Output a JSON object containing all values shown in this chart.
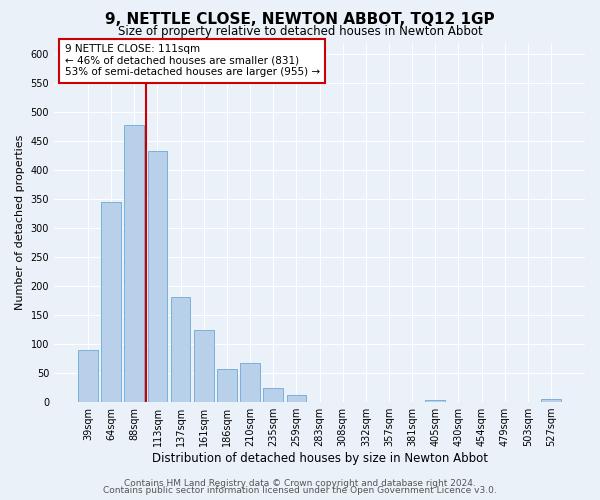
{
  "title": "9, NETTLE CLOSE, NEWTON ABBOT, TQ12 1GP",
  "subtitle": "Size of property relative to detached houses in Newton Abbot",
  "xlabel": "Distribution of detached houses by size in Newton Abbot",
  "ylabel": "Number of detached properties",
  "bar_labels": [
    "39sqm",
    "64sqm",
    "88sqm",
    "113sqm",
    "137sqm",
    "161sqm",
    "186sqm",
    "210sqm",
    "235sqm",
    "259sqm",
    "283sqm",
    "308sqm",
    "332sqm",
    "357sqm",
    "381sqm",
    "405sqm",
    "430sqm",
    "454sqm",
    "479sqm",
    "503sqm",
    "527sqm"
  ],
  "bar_values": [
    90,
    345,
    478,
    433,
    182,
    125,
    57,
    67,
    25,
    13,
    0,
    0,
    0,
    0,
    0,
    3,
    0,
    0,
    0,
    0,
    5
  ],
  "bar_color": "#b8d0ea",
  "bar_edge_color": "#6aaad4",
  "vline_color": "#cc0000",
  "annotation_text": "9 NETTLE CLOSE: 111sqm\n← 46% of detached houses are smaller (831)\n53% of semi-detached houses are larger (955) →",
  "annotation_box_color": "#ffffff",
  "annotation_box_edge": "#cc0000",
  "ylim": [
    0,
    620
  ],
  "yticks": [
    0,
    50,
    100,
    150,
    200,
    250,
    300,
    350,
    400,
    450,
    500,
    550,
    600
  ],
  "footer_line1": "Contains HM Land Registry data © Crown copyright and database right 2024.",
  "footer_line2": "Contains public sector information licensed under the Open Government Licence v3.0.",
  "fig_bg_color": "#eaf1f8",
  "plot_bg_color": "#eaf1f8",
  "title_fontsize": 11,
  "subtitle_fontsize": 8.5,
  "xlabel_fontsize": 8.5,
  "ylabel_fontsize": 8,
  "tick_fontsize": 7,
  "footer_fontsize": 6.5,
  "annotation_fontsize": 7.5
}
